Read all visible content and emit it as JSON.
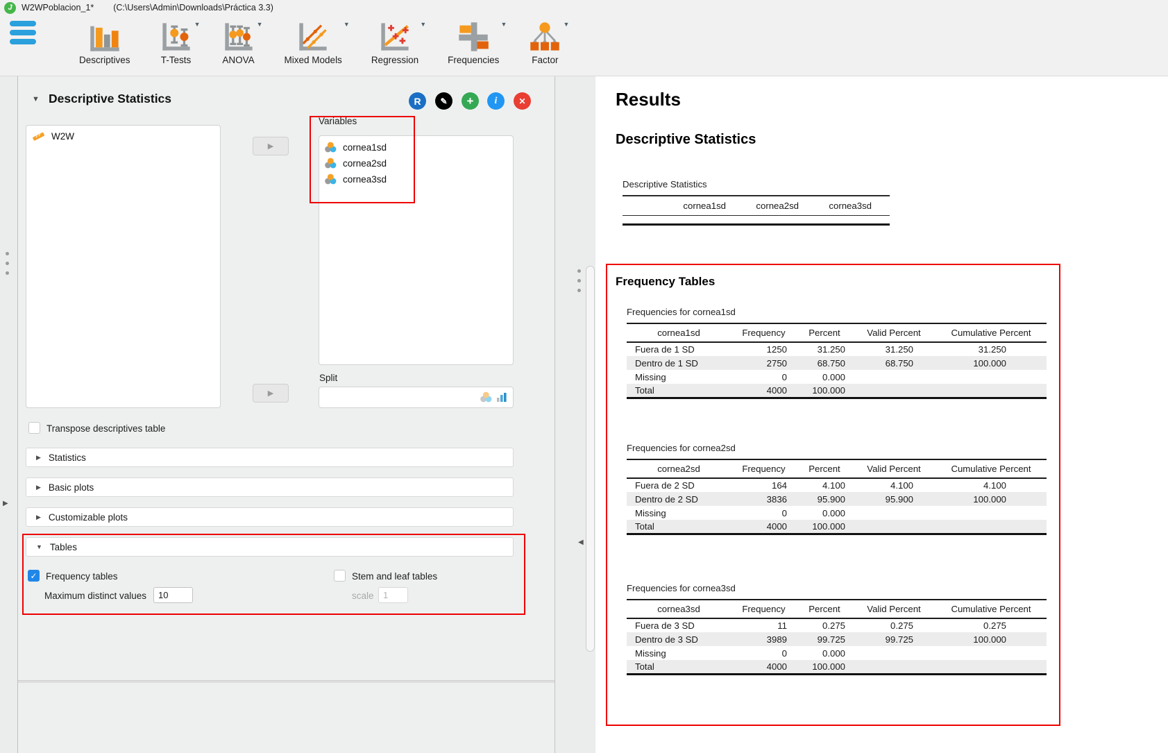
{
  "titlebar": {
    "app_title": "W2WPoblacion_1*",
    "file_path": "(C:\\Users\\Admin\\Downloads\\Práctica 3.3)"
  },
  "ribbon": {
    "buttons": [
      {
        "label": "Descriptives",
        "icon": "bar-chart-icon",
        "has_dropdown": false
      },
      {
        "label": "T-Tests",
        "icon": "t-test-icon",
        "has_dropdown": true
      },
      {
        "label": "ANOVA",
        "icon": "anova-icon",
        "has_dropdown": true
      },
      {
        "label": "Mixed Models",
        "icon": "mixed-models-icon",
        "has_dropdown": true
      },
      {
        "label": "Regression",
        "icon": "regression-icon",
        "has_dropdown": true
      },
      {
        "label": "Frequencies",
        "icon": "frequencies-icon",
        "has_dropdown": true
      },
      {
        "label": "Factor",
        "icon": "factor-icon",
        "has_dropdown": true
      }
    ]
  },
  "options": {
    "panel_title": "Descriptive Statistics",
    "available_items": [
      {
        "label": "W2W",
        "icon": "scale-variable-icon"
      }
    ],
    "variables_label": "Variables",
    "variables": [
      {
        "label": "cornea1sd",
        "icon": "nominal-variable-icon"
      },
      {
        "label": "cornea2sd",
        "icon": "nominal-variable-icon"
      },
      {
        "label": "cornea3sd",
        "icon": "nominal-variable-icon"
      }
    ],
    "split_label": "Split",
    "transpose_label": "Transpose descriptives table",
    "transpose_checked": false,
    "sections": [
      {
        "label": "Statistics",
        "expanded": false
      },
      {
        "label": "Basic plots",
        "expanded": false
      },
      {
        "label": "Customizable plots",
        "expanded": false
      },
      {
        "label": "Tables",
        "expanded": true
      }
    ],
    "frequency_tables_label": "Frequency tables",
    "frequency_tables_checked": true,
    "max_distinct_label": "Maximum distinct values",
    "max_distinct_value": "10",
    "stem_leaf_label": "Stem and leaf tables",
    "stem_leaf_checked": false,
    "scale_label": "scale",
    "scale_value": "1"
  },
  "results": {
    "title": "Results",
    "heading": "Descriptive Statistics",
    "descriptives_table": {
      "caption": "Descriptive Statistics",
      "columns": [
        "cornea1sd",
        "cornea2sd",
        "cornea3sd"
      ]
    },
    "frequency_heading": "Frequency Tables",
    "frequency_tables": [
      {
        "caption": "Frequencies for cornea1sd",
        "first_col": "cornea1sd",
        "columns": [
          "Frequency",
          "Percent",
          "Valid Percent",
          "Cumulative Percent"
        ],
        "rows": [
          [
            "Fuera de 1 SD",
            "1250",
            "31.250",
            "31.250",
            "31.250"
          ],
          [
            "Dentro de 1 SD",
            "2750",
            "68.750",
            "68.750",
            "100.000"
          ],
          [
            "Missing",
            "0",
            "0.000",
            "",
            ""
          ],
          [
            "Total",
            "4000",
            "100.000",
            "",
            ""
          ]
        ]
      },
      {
        "caption": "Frequencies for cornea2sd",
        "first_col": "cornea2sd",
        "columns": [
          "Frequency",
          "Percent",
          "Valid Percent",
          "Cumulative Percent"
        ],
        "rows": [
          [
            "Fuera de 2 SD",
            "164",
            "4.100",
            "4.100",
            "4.100"
          ],
          [
            "Dentro de 2 SD",
            "3836",
            "95.900",
            "95.900",
            "100.000"
          ],
          [
            "Missing",
            "0",
            "0.000",
            "",
            ""
          ],
          [
            "Total",
            "4000",
            "100.000",
            "",
            ""
          ]
        ]
      },
      {
        "caption": "Frequencies for cornea3sd",
        "first_col": "cornea3sd",
        "columns": [
          "Frequency",
          "Percent",
          "Valid Percent",
          "Cumulative Percent"
        ],
        "rows": [
          [
            "Fuera de 3 SD",
            "11",
            "0.275",
            "0.275",
            "0.275"
          ],
          [
            "Dentro de 3 SD",
            "3989",
            "99.725",
            "99.725",
            "100.000"
          ],
          [
            "Missing",
            "0",
            "0.000",
            "",
            ""
          ],
          [
            "Total",
            "4000",
            "100.000",
            "",
            ""
          ]
        ]
      }
    ]
  },
  "colors": {
    "accent_orange": "#f59a1f",
    "accent_dark_orange": "#e2630b",
    "hamburger_blue": "#2aa0dd",
    "checked_blue": "#2187e7",
    "annotation_red": "#ee0000",
    "logo_green": "#45b649"
  },
  "misc": {
    "r_button": "R",
    "assign_arrow": "▶",
    "collapse_expanded": "▼",
    "collapse_collapsed": "▶",
    "panel_expand_right": "▶",
    "panel_collapse_left": "◀"
  }
}
